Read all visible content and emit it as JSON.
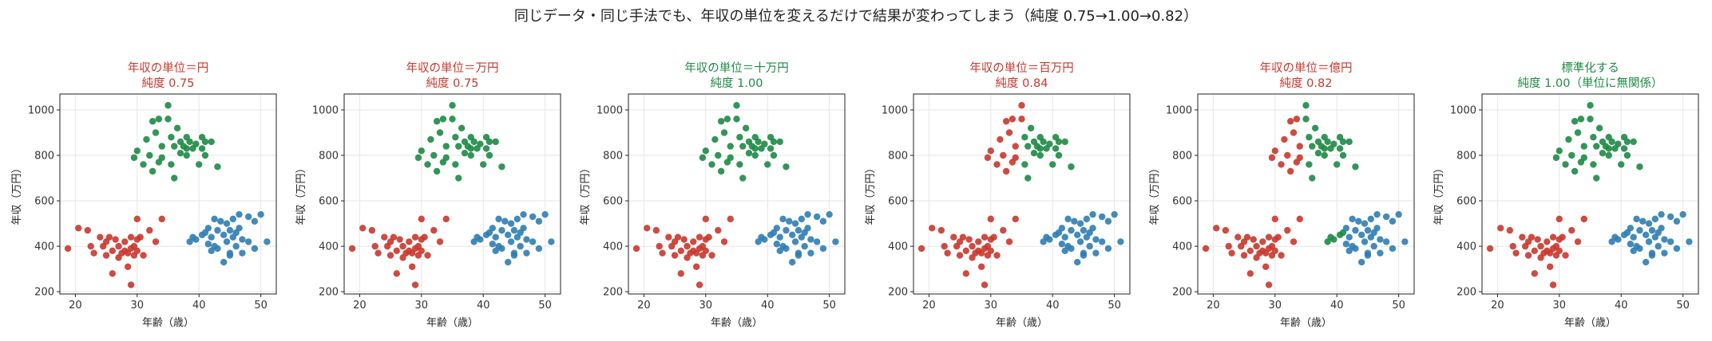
{
  "suptitle": "同じデータ・同じ手法でも、年収の単位を変えるだけで結果が変わってしまう（純度 0.75→1.00→0.82）",
  "colors": {
    "red": "#c9372c",
    "blue": "#2f7db3",
    "green": "#1d8a45",
    "good_title": "#1d8a45",
    "bad_title": "#c9372c"
  },
  "chart_data": [
    {
      "type": "scatter",
      "title_line1": "年収の単位＝円",
      "title_line2": "純度 0.75",
      "title_color": "red",
      "xlabel": "年齢（歳）",
      "ylabel": "年収（万円）",
      "xlim": [
        17.5,
        52.5
      ],
      "ylim": [
        190,
        1070
      ],
      "xticks": [
        20,
        30,
        40,
        50
      ],
      "yticks": [
        200,
        400,
        600,
        800,
        1000
      ],
      "grid": true,
      "assign": "A"
    },
    {
      "type": "scatter",
      "title_line1": "年収の単位＝万円",
      "title_line2": "純度 0.75",
      "title_color": "red",
      "xlabel": "年齢（歳）",
      "ylabel": "年収（万円）",
      "xlim": [
        17.5,
        52.5
      ],
      "ylim": [
        190,
        1070
      ],
      "xticks": [
        20,
        30,
        40,
        50
      ],
      "yticks": [
        200,
        400,
        600,
        800,
        1000
      ],
      "grid": true,
      "assign": "A"
    },
    {
      "type": "scatter",
      "title_line1": "年収の単位＝十万円",
      "title_line2": "純度 1.00",
      "title_color": "green",
      "xlabel": "年齢（歳）",
      "ylabel": "年収（万円）",
      "xlim": [
        17.5,
        52.5
      ],
      "ylim": [
        190,
        1070
      ],
      "xticks": [
        20,
        30,
        40,
        50
      ],
      "yticks": [
        200,
        400,
        600,
        800,
        1000
      ],
      "grid": true,
      "assign": "B"
    },
    {
      "type": "scatter",
      "title_line1": "年収の単位＝百万円",
      "title_line2": "純度 0.84",
      "title_color": "red",
      "xlabel": "年齢（歳）",
      "ylabel": "年収（万円）",
      "xlim": [
        17.5,
        52.5
      ],
      "ylim": [
        190,
        1070
      ],
      "xticks": [
        20,
        30,
        40,
        50
      ],
      "yticks": [
        200,
        400,
        600,
        800,
        1000
      ],
      "grid": true,
      "assign": "C"
    },
    {
      "type": "scatter",
      "title_line1": "年収の単位＝億円",
      "title_line2": "純度 0.82",
      "title_color": "red",
      "xlabel": "年齢（歳）",
      "ylabel": "年収（万円）",
      "xlim": [
        17.5,
        52.5
      ],
      "ylim": [
        190,
        1070
      ],
      "xticks": [
        20,
        30,
        40,
        50
      ],
      "yticks": [
        200,
        400,
        600,
        800,
        1000
      ],
      "grid": true,
      "assign": "D"
    },
    {
      "type": "scatter",
      "title_line1": "標準化する",
      "title_line2": "純度 1.00（単位に無関係）",
      "title_color": "green",
      "xlabel": "年齢（歳）",
      "ylabel": "年収（万円）",
      "xlim": [
        17.5,
        52.5
      ],
      "ylim": [
        190,
        1070
      ],
      "xticks": [
        20,
        30,
        40,
        50
      ],
      "yticks": [
        200,
        400,
        600,
        800,
        1000
      ],
      "grid": true,
      "assign": "B"
    }
  ],
  "points": {
    "young": [
      [
        18.8,
        390
      ],
      [
        20.5,
        480
      ],
      [
        22,
        470
      ],
      [
        22.5,
        400
      ],
      [
        23,
        370
      ],
      [
        24,
        440
      ],
      [
        24.5,
        400
      ],
      [
        25,
        420
      ],
      [
        25.5,
        440
      ],
      [
        25,
        360
      ],
      [
        26,
        380
      ],
      [
        26,
        280
      ],
      [
        26.5,
        430
      ],
      [
        27,
        400
      ],
      [
        27,
        350
      ],
      [
        27.5,
        370
      ],
      [
        28,
        380
      ],
      [
        28,
        420
      ],
      [
        28.5,
        310
      ],
      [
        28.5,
        370
      ],
      [
        29,
        440
      ],
      [
        29,
        390
      ],
      [
        29.5,
        400
      ],
      [
        29.5,
        360
      ],
      [
        30,
        520
      ],
      [
        30,
        380
      ],
      [
        30,
        430
      ],
      [
        29,
        230
      ],
      [
        30.5,
        440
      ],
      [
        31,
        360
      ],
      [
        32,
        470
      ],
      [
        33,
        420
      ],
      [
        34,
        520
      ]
    ],
    "old": [
      [
        38.5,
        420
      ],
      [
        39,
        440
      ],
      [
        39.5,
        430
      ],
      [
        40.5,
        450
      ],
      [
        41,
        460
      ],
      [
        41.5,
        480
      ],
      [
        41.5,
        410
      ],
      [
        42,
        440
      ],
      [
        42.5,
        520
      ],
      [
        42.5,
        400
      ],
      [
        43,
        470
      ],
      [
        43,
        390
      ],
      [
        43.5,
        510
      ],
      [
        44,
        450
      ],
      [
        44,
        330
      ],
      [
        44.5,
        500
      ],
      [
        44.5,
        420
      ],
      [
        45,
        470
      ],
      [
        45,
        370
      ],
      [
        45.5,
        520
      ],
      [
        45.5,
        440
      ],
      [
        46,
        460
      ],
      [
        46,
        400
      ],
      [
        46.5,
        540
      ],
      [
        46.5,
        480
      ],
      [
        47,
        430
      ],
      [
        47,
        370
      ],
      [
        48,
        530
      ],
      [
        48,
        420
      ],
      [
        49,
        510
      ],
      [
        49,
        390
      ],
      [
        50,
        540
      ],
      [
        51,
        420
      ],
      [
        45,
        360
      ],
      [
        42,
        380
      ]
    ],
    "high": [
      [
        29.5,
        790
      ],
      [
        30,
        820
      ],
      [
        31,
        760
      ],
      [
        31.5,
        870
      ],
      [
        32,
        800
      ],
      [
        32.5,
        950
      ],
      [
        32.5,
        730
      ],
      [
        33,
        900
      ],
      [
        33.5,
        960
      ],
      [
        33.5,
        770
      ],
      [
        34,
        840
      ],
      [
        34,
        790
      ],
      [
        35,
        1020
      ],
      [
        35,
        960
      ],
      [
        35.5,
        880
      ],
      [
        35.5,
        760
      ],
      [
        36,
        840
      ],
      [
        36,
        700
      ],
      [
        36.5,
        920
      ],
      [
        37,
        860
      ],
      [
        37,
        810
      ],
      [
        37.5,
        840
      ],
      [
        38,
        880
      ],
      [
        38,
        800
      ],
      [
        38.5,
        860
      ],
      [
        39,
        830
      ],
      [
        39.5,
        850
      ],
      [
        40,
        760
      ],
      [
        40.5,
        880
      ],
      [
        40.5,
        830
      ],
      [
        41,
        860
      ],
      [
        41,
        800
      ],
      [
        42,
        860
      ],
      [
        43,
        750
      ],
      [
        38,
        830
      ]
    ]
  }
}
